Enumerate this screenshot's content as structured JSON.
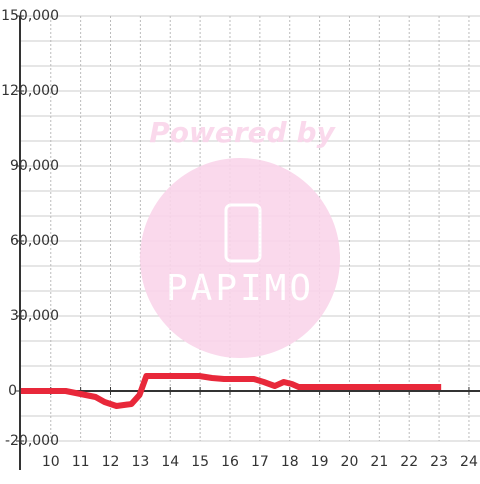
{
  "chart_data": {
    "type": "line",
    "watermark": {
      "line1": "Powered by",
      "line2": "PAPIMO"
    },
    "x": [
      9,
      10.5,
      11,
      11.5,
      11.8,
      12.2,
      12.7,
      12.97,
      13.2,
      14.97,
      15.4,
      15.8,
      16.8,
      17.13,
      17.5,
      17.8,
      18.07,
      18.3,
      23.07
    ],
    "series": [
      {
        "color": "#e8283a",
        "values": [
          0,
          0,
          -1200,
          -2400,
          -4400,
          -6000,
          -5200,
          -1600,
          6000,
          6000,
          5200,
          4800,
          4800,
          3600,
          2000,
          3600,
          2800,
          1600,
          1600
        ]
      }
    ],
    "xlim": [
      8.97,
      24.37
    ],
    "xticks": [
      10,
      11,
      12,
      13,
      14,
      15,
      16,
      17,
      18,
      19,
      20,
      21,
      22,
      23,
      24
    ],
    "ylim": [
      -20000,
      150000
    ],
    "yticks": [
      {
        "value": -20000,
        "label": "-20,000"
      },
      0,
      {
        "value": 30000,
        "label": "30,000"
      },
      {
        "value": 60000,
        "label": "60,000"
      },
      {
        "value": 90000,
        "label": "90,000"
      },
      {
        "value": 120000,
        "label": "120,000"
      },
      {
        "value": 150000,
        "label": "150,000"
      }
    ],
    "y_minor_ticks": [
      -10000,
      10000,
      20000,
      40000,
      50000,
      70000,
      80000,
      100000,
      110000,
      130000,
      140000
    ],
    "grid": true
  }
}
